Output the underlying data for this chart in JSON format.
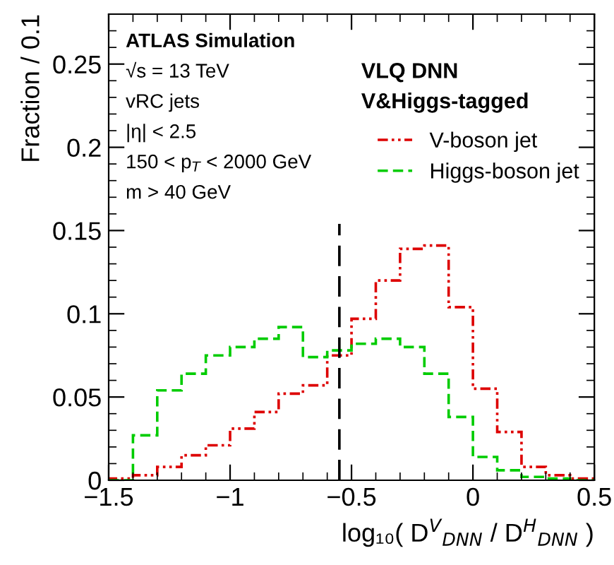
{
  "chart_data": {
    "type": "histogram",
    "xlabel": "log₁₀( D$^{V}$$_{DNN}$ / D$^{H}$$_{DNN}$ )",
    "ylabel": "Fraction / 0.1",
    "bins": [
      -1.5,
      -1.4,
      -1.3,
      -1.2,
      -1.1,
      -1.0,
      -0.9,
      -0.8,
      -0.7,
      -0.6,
      -0.5,
      -0.4,
      -0.3,
      -0.2,
      -0.1,
      0,
      0.1,
      0.2,
      0.3,
      0.4,
      0.5
    ],
    "series": [
      {
        "name": "V-boson jet",
        "color": "#dd0000",
        "line_style": "dotted",
        "values": [
          0.001,
          0.003,
          0.008,
          0.015,
          0.021,
          0.031,
          0.041,
          0.052,
          0.057,
          0.075,
          0.097,
          0.12,
          0.139,
          0.141,
          0.104,
          0.055,
          0.029,
          0.008,
          0.003,
          0.001
        ]
      },
      {
        "name": "Higgs-boson jet",
        "color": "#00cc00",
        "line_style": "dashed",
        "values": [
          0,
          0.027,
          0.054,
          0.064,
          0.075,
          0.08,
          0.085,
          0.092,
          0.074,
          0.078,
          0.082,
          0.085,
          0.08,
          0.064,
          0.038,
          0.014,
          0.006,
          0.002,
          0.001,
          0
        ]
      }
    ],
    "xlim": [
      -1.5,
      0.5
    ],
    "ylim": [
      0,
      0.28
    ],
    "xticks": [
      {
        "value": -1.5,
        "label": "−1.5"
      },
      {
        "value": -1,
        "label": "−1"
      },
      {
        "value": -0.5,
        "label": "−0.5"
      },
      0,
      0.5
    ],
    "yticks": [
      0,
      0.05,
      0.1,
      0.15,
      0.2,
      0.25
    ],
    "ref_lines": [
      {
        "axis": "x",
        "value": -0.55,
        "color": "#000000",
        "line_style": "dashed"
      }
    ],
    "annotations": [
      "ATLAS Simulation",
      "√s = 13 TeV",
      "vRC jets",
      "|η| < 2.5",
      "150 < p$_{T}$ < 2000 GeV",
      "m > 40 GeV",
      "VLQ DNN",
      "V&Higgs-tagged"
    ],
    "legend": "top right",
    "grid": false
  }
}
